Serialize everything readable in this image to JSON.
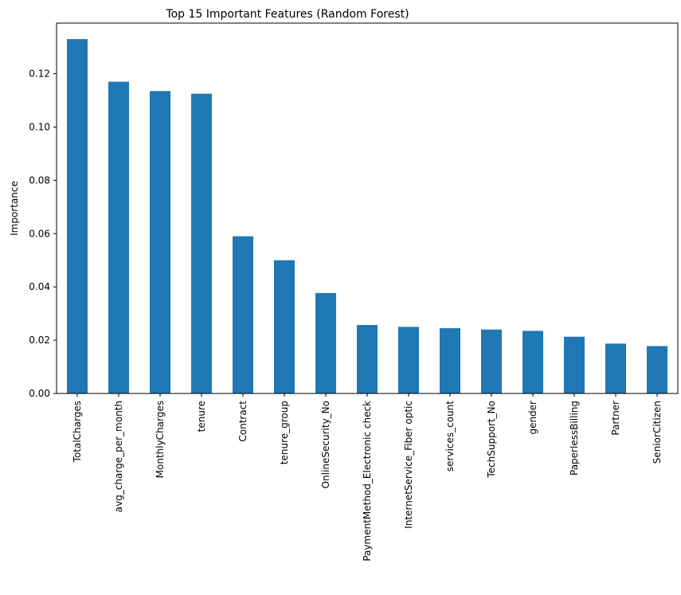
{
  "chart_data": {
    "type": "bar",
    "title": "Top 15 Important Features (Random Forest)",
    "xlabel": "",
    "ylabel": "Importance",
    "ylim": [
      0,
      0.139
    ],
    "yticks": [
      "0.00",
      "0.02",
      "0.04",
      "0.06",
      "0.08",
      "0.10",
      "0.12"
    ],
    "grid": false,
    "bar_color": "#1f77b4",
    "categories": [
      "TotalCharges",
      "avg_charge_per_month",
      "MonthlyCharges",
      "tenure",
      "Contract",
      "tenure_group",
      "OnlineSecurity_No",
      "PaymentMethod_Electronic check",
      "InternetService_Fiber optic",
      "services_count",
      "TechSupport_No",
      "gender",
      "PaperlessBilling",
      "Partner",
      "SeniorCitizen"
    ],
    "values": [
      0.133,
      0.117,
      0.1135,
      0.1125,
      0.059,
      0.05,
      0.0377,
      0.0257,
      0.025,
      0.0245,
      0.024,
      0.0235,
      0.0213,
      0.0187,
      0.0178
    ]
  }
}
